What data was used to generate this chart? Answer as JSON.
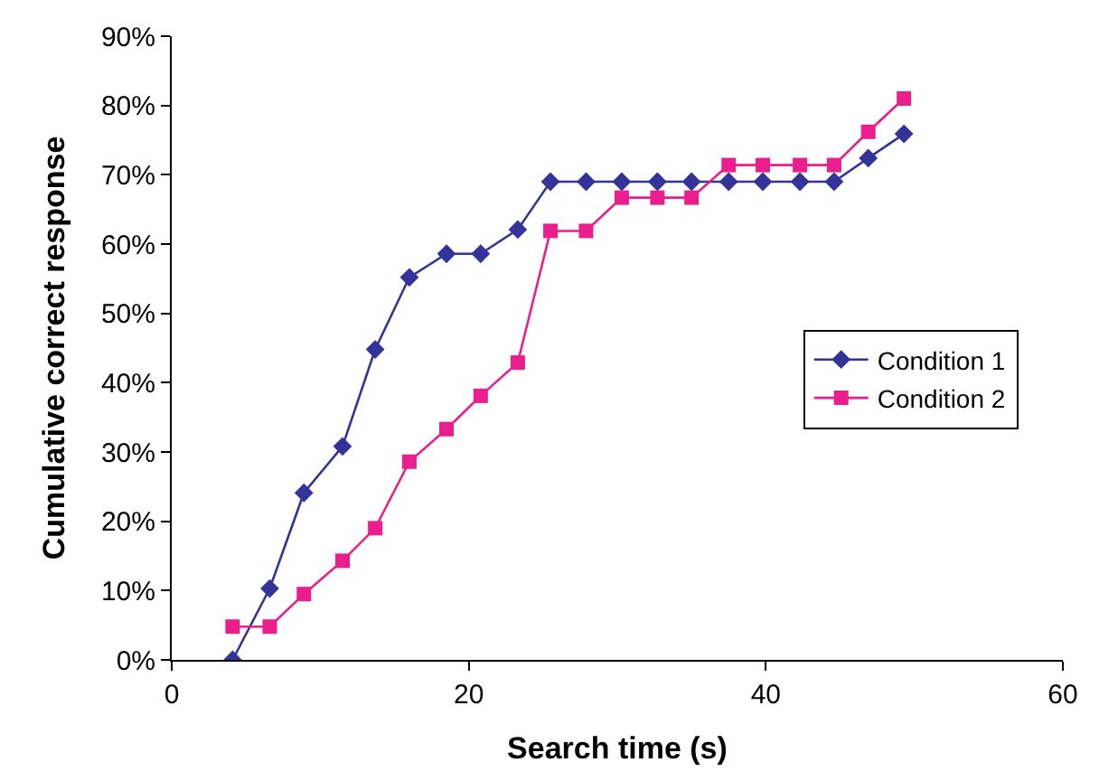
{
  "chart_data": {
    "type": "line",
    "xlabel": "Search time (s)",
    "ylabel": "Cumulative correct response",
    "x": [
      4.1,
      6.6,
      8.9,
      11.5,
      13.7,
      16.0,
      18.5,
      20.8,
      23.3,
      25.5,
      27.9,
      30.3,
      32.7,
      35.0,
      37.5,
      39.8,
      42.3,
      44.6,
      46.9,
      49.3
    ],
    "series": [
      {
        "name": "Condition 1",
        "color": "#333399",
        "marker": "diamond",
        "values": [
          0,
          10.3,
          24.1,
          30.8,
          44.8,
          55.2,
          58.6,
          58.6,
          62.1,
          69.0,
          69.0,
          69.0,
          69.0,
          69.0,
          69.0,
          69.0,
          69.0,
          69.0,
          72.4,
          75.9
        ]
      },
      {
        "name": "Condition 2",
        "color": "#ea1e8c",
        "marker": "square",
        "values": [
          4.8,
          4.8,
          9.5,
          14.3,
          19.0,
          28.6,
          33.3,
          38.1,
          42.9,
          61.9,
          61.9,
          66.7,
          66.7,
          66.7,
          71.4,
          71.4,
          71.4,
          71.4,
          76.2,
          81.0
        ]
      }
    ],
    "xlim": [
      0,
      60
    ],
    "xticks": [
      0,
      20,
      40,
      60
    ],
    "ylim": [
      0,
      90
    ],
    "yticks": [
      {
        "value": 0,
        "label": "0%"
      },
      {
        "value": 10,
        "label": "10%"
      },
      {
        "value": 20,
        "label": "20%"
      },
      {
        "value": 30,
        "label": "30%"
      },
      {
        "value": 40,
        "label": "40%"
      },
      {
        "value": 50,
        "label": "50%"
      },
      {
        "value": 60,
        "label": "60%"
      },
      {
        "value": 70,
        "label": "70%"
      },
      {
        "value": 80,
        "label": "80%"
      },
      {
        "value": 90,
        "label": "90%"
      }
    ],
    "legend": "right",
    "line_style": "solid"
  }
}
